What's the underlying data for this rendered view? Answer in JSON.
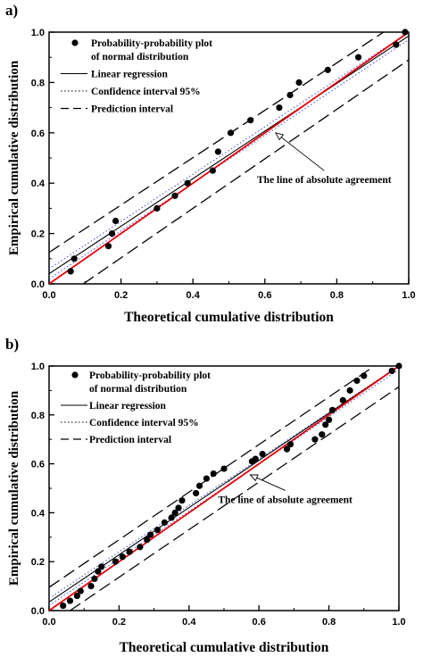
{
  "chart_data": [
    {
      "panel_label": "a)",
      "type": "scatter",
      "xlabel": "Theoretical cumulative distribution",
      "ylabel": "Empirical cumulative distribution",
      "xlim": [
        0,
        1
      ],
      "ylim": [
        0,
        1
      ],
      "xticks": [
        "0.0",
        "0.2",
        "0.4",
        "0.6",
        "0.8",
        "1.0"
      ],
      "yticks": [
        "0.0",
        "0.2",
        "0.4",
        "0.6",
        "0.8",
        "1.0"
      ],
      "grid": false,
      "legend_position": "top-left",
      "legend": {
        "points_line1": "Probability-probability plot",
        "points_line2": "of normal distribution",
        "regression": "Linear regression",
        "confidence": "Confidence interval 95%",
        "prediction": "Prediction interval"
      },
      "annotation": "The line of absolute agreement",
      "points": {
        "x": [
          0.06,
          0.07,
          0.165,
          0.175,
          0.185,
          0.3,
          0.35,
          0.385,
          0.455,
          0.47,
          0.505,
          0.56,
          0.64,
          0.67,
          0.695,
          0.775,
          0.86,
          0.965,
          0.99
        ],
        "y": [
          0.05,
          0.1,
          0.15,
          0.2,
          0.25,
          0.3,
          0.35,
          0.4,
          0.45,
          0.525,
          0.6,
          0.65,
          0.7,
          0.75,
          0.8,
          0.85,
          0.9,
          0.95,
          1.0
        ]
      },
      "regression_line": [
        [
          0.0,
          0.04
        ],
        [
          1.0,
          0.985
        ]
      ],
      "confidence_upper": [
        [
          0.0,
          0.06
        ],
        [
          1.0,
          1.0
        ]
      ],
      "confidence_lower": [
        [
          0.0,
          0.02
        ],
        [
          1.0,
          0.97
        ]
      ],
      "prediction_upper": [
        [
          0.0,
          0.125
        ],
        [
          0.93,
          1.0
        ]
      ],
      "prediction_lower": [
        [
          0.095,
          0.0
        ],
        [
          1.0,
          0.89
        ]
      ],
      "agreement_line": [
        [
          0.0,
          0.0
        ],
        [
          1.0,
          1.0
        ]
      ],
      "annotation_arrow_tip": [
        0.63,
        0.6
      ],
      "annotation_anchor": [
        0.765,
        0.4
      ],
      "colors": {
        "points": "#000000",
        "agreement": "#e8000b",
        "lines": "#000000"
      }
    },
    {
      "panel_label": "b)",
      "type": "scatter",
      "xlabel": "Theoretical cumulative distribution",
      "ylabel": "Empirical cumulative distribution",
      "xlim": [
        0,
        1
      ],
      "ylim": [
        0,
        1
      ],
      "xticks": [
        "0.0",
        "0.2",
        "0.4",
        "0.6",
        "0.8",
        "1.0"
      ],
      "yticks": [
        "0.0",
        "0.2",
        "0.4",
        "0.6",
        "0.8",
        "1.0"
      ],
      "grid": false,
      "legend_position": "top-left",
      "legend": {
        "points_line1": "Probability-probability plot",
        "points_line2": "of normal distribution",
        "regression": "Linear regression",
        "confidence": "Confidence interval 95%",
        "prediction": "Prediction interval"
      },
      "annotation": "The line of absolute agreement",
      "points": {
        "x": [
          0.04,
          0.06,
          0.08,
          0.09,
          0.12,
          0.13,
          0.14,
          0.15,
          0.19,
          0.21,
          0.23,
          0.26,
          0.28,
          0.29,
          0.31,
          0.33,
          0.35,
          0.36,
          0.37,
          0.38,
          0.42,
          0.43,
          0.45,
          0.47,
          0.5,
          0.58,
          0.59,
          0.61,
          0.68,
          0.69,
          0.76,
          0.78,
          0.79,
          0.8,
          0.81,
          0.84,
          0.86,
          0.88,
          0.9,
          0.98,
          1.0
        ],
        "y": [
          0.02,
          0.04,
          0.06,
          0.08,
          0.1,
          0.13,
          0.16,
          0.18,
          0.2,
          0.22,
          0.24,
          0.26,
          0.29,
          0.31,
          0.33,
          0.36,
          0.38,
          0.4,
          0.42,
          0.45,
          0.48,
          0.51,
          0.54,
          0.56,
          0.58,
          0.61,
          0.62,
          0.64,
          0.66,
          0.68,
          0.7,
          0.72,
          0.76,
          0.78,
          0.82,
          0.86,
          0.9,
          0.94,
          0.96,
          0.98,
          1.0
        ]
      },
      "regression_line": [
        [
          0.0,
          0.035
        ],
        [
          1.0,
          1.0
        ]
      ],
      "confidence_upper": [
        [
          0.0,
          0.05
        ],
        [
          1.0,
          1.0
        ]
      ],
      "confidence_lower": [
        [
          0.0,
          0.02
        ],
        [
          1.0,
          0.985
        ]
      ],
      "prediction_upper": [
        [
          0.0,
          0.095
        ],
        [
          0.93,
          1.0
        ]
      ],
      "prediction_lower": [
        [
          0.06,
          0.0
        ],
        [
          1.0,
          0.915
        ]
      ],
      "agreement_line": [
        [
          0.0,
          0.0
        ],
        [
          1.0,
          1.0
        ]
      ],
      "annotation_arrow_tip": [
        0.575,
        0.555
      ],
      "annotation_anchor": [
        0.675,
        0.44
      ],
      "colors": {
        "points": "#000000",
        "agreement": "#e8000b",
        "lines": "#000000"
      }
    }
  ]
}
